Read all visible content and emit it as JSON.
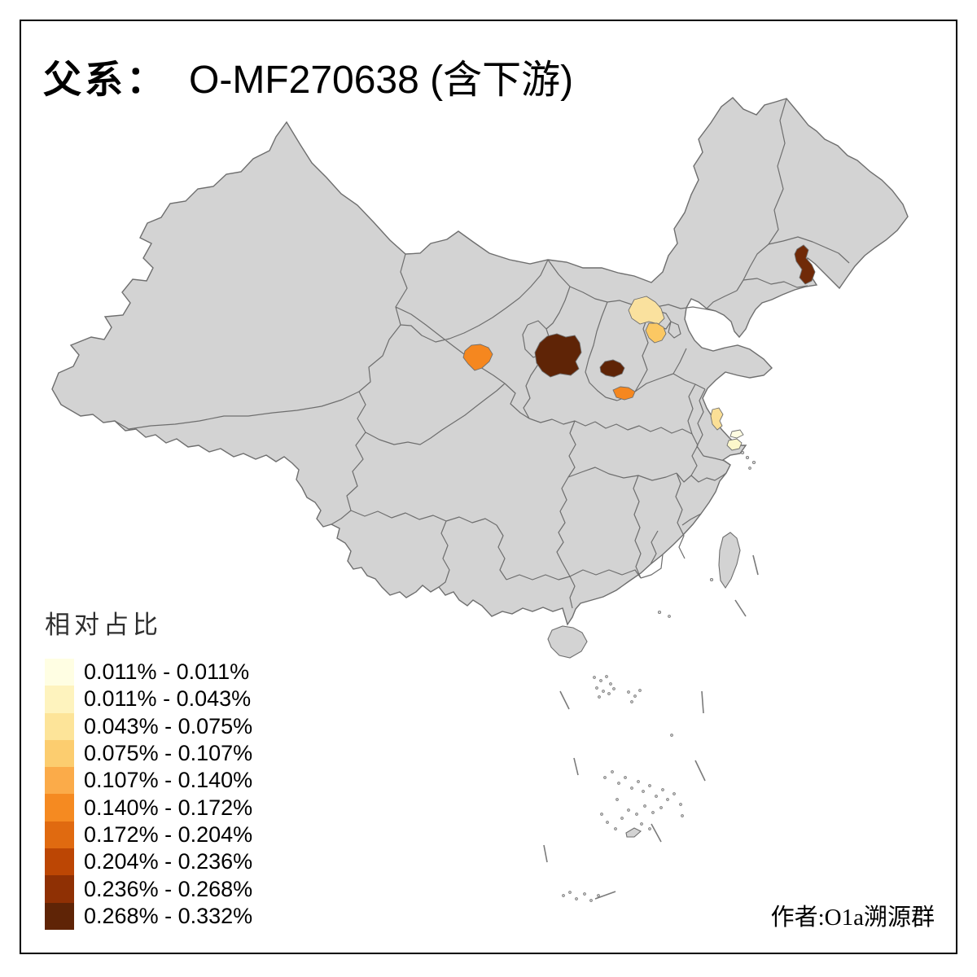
{
  "title": {
    "prefix": "父系：",
    "main": "O-MF270638 (含下游)"
  },
  "author": "作者:O1a溯源群",
  "legend": {
    "title": "相对占比",
    "classes": [
      {
        "range": "0.011% - 0.011%",
        "color": "#FFFEE3"
      },
      {
        "range": "0.011% - 0.043%",
        "color": "#FEF3BE"
      },
      {
        "range": "0.043% - 0.075%",
        "color": "#FDE499"
      },
      {
        "range": "0.075% - 0.107%",
        "color": "#FCCD6F"
      },
      {
        "range": "0.107% - 0.140%",
        "color": "#FBAB49"
      },
      {
        "range": "0.140% - 0.172%",
        "color": "#F58A21"
      },
      {
        "range": "0.172% - 0.204%",
        "color": "#E06A10"
      },
      {
        "range": "0.204% - 0.236%",
        "color": "#BC4604"
      },
      {
        "range": "0.236% - 0.268%",
        "color": "#8F3004"
      },
      {
        "range": "0.268% - 0.332%",
        "color": "#5F2406"
      }
    ]
  },
  "map": {
    "land_color": "#D3D3D3",
    "border_color": "#6E6E6E",
    "sea_color": "#FFFFFF",
    "frame_color": "#000000",
    "regions": [
      {
        "id": "northeast-jilin",
        "color": "#702A08",
        "legend_class": "0.236% - 0.268%"
      },
      {
        "id": "north-shaanxi",
        "color": "#5F2406",
        "legend_class": "0.268% - 0.332%"
      },
      {
        "id": "southwest-shanxi",
        "color": "#5F2406",
        "legend_class": "0.268% - 0.332%"
      },
      {
        "id": "central-hebei",
        "color": "#FAE19E",
        "legend_class": "0.043% - 0.075%"
      },
      {
        "id": "south-hebei",
        "color": "#FBC863",
        "legend_class": "0.075% - 0.107%"
      },
      {
        "id": "central-gansu",
        "color": "#F5871F",
        "legend_class": "0.140% - 0.172%"
      },
      {
        "id": "west-henan",
        "color": "#F5871F",
        "legend_class": "0.140% - 0.172%"
      },
      {
        "id": "central-jiangsu",
        "color": "#FBDF96",
        "legend_class": "0.043% - 0.075%"
      },
      {
        "id": "south-jiangsu-a",
        "color": "#FEFCE2",
        "legend_class": "0.011% - 0.011%"
      },
      {
        "id": "south-jiangsu-b",
        "color": "#FCF7CB",
        "legend_class": "0.011% - 0.043%"
      }
    ]
  }
}
